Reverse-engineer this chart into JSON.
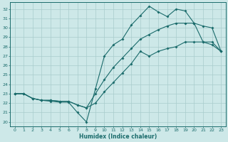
{
  "title": "",
  "xlabel": "Humidex (Indice chaleur)",
  "bg_color": "#cde8e8",
  "grid_color": "#a8cccc",
  "line_color": "#1a6b6b",
  "xlim": [
    -0.5,
    23.5
  ],
  "ylim": [
    19.5,
    32.7
  ],
  "xticks": [
    0,
    1,
    2,
    3,
    4,
    5,
    6,
    7,
    8,
    9,
    10,
    11,
    12,
    13,
    14,
    15,
    16,
    17,
    18,
    19,
    20,
    21,
    22,
    23
  ],
  "yticks": [
    20,
    21,
    22,
    23,
    24,
    25,
    26,
    27,
    28,
    29,
    30,
    31,
    32
  ],
  "line1_x": [
    0,
    1,
    2,
    3,
    4,
    5,
    6,
    7,
    8,
    9,
    10,
    11,
    12,
    13,
    14,
    15,
    16,
    17,
    18,
    19,
    20,
    21,
    22,
    23
  ],
  "line1_y": [
    23.0,
    23.0,
    22.5,
    22.3,
    22.2,
    22.1,
    22.1,
    21.0,
    20.0,
    23.5,
    27.0,
    28.2,
    28.8,
    30.3,
    31.3,
    32.3,
    31.7,
    31.2,
    32.0,
    31.8,
    30.5,
    28.5,
    28.2,
    27.5
  ],
  "line2_x": [
    0,
    1,
    2,
    3,
    4,
    5,
    6,
    7,
    8,
    9,
    10,
    11,
    12,
    13,
    14,
    15,
    16,
    17,
    18,
    19,
    20,
    21,
    22,
    23
  ],
  "line2_y": [
    23.0,
    23.0,
    22.5,
    22.3,
    22.3,
    22.2,
    22.2,
    21.8,
    21.5,
    22.0,
    23.2,
    24.2,
    25.2,
    26.2,
    27.5,
    27.0,
    27.5,
    27.8,
    28.0,
    28.5,
    28.5,
    28.5,
    28.5,
    27.5
  ],
  "line3_x": [
    0,
    1,
    2,
    3,
    4,
    5,
    6,
    7,
    8,
    9,
    10,
    11,
    12,
    13,
    14,
    15,
    16,
    17,
    18,
    19,
    20,
    21,
    22,
    23
  ],
  "line3_y": [
    23.0,
    23.0,
    22.5,
    22.3,
    22.3,
    22.2,
    22.2,
    21.8,
    21.5,
    23.0,
    24.5,
    25.8,
    26.8,
    27.8,
    28.8,
    29.3,
    29.8,
    30.2,
    30.5,
    30.5,
    30.5,
    30.2,
    30.0,
    27.5
  ]
}
